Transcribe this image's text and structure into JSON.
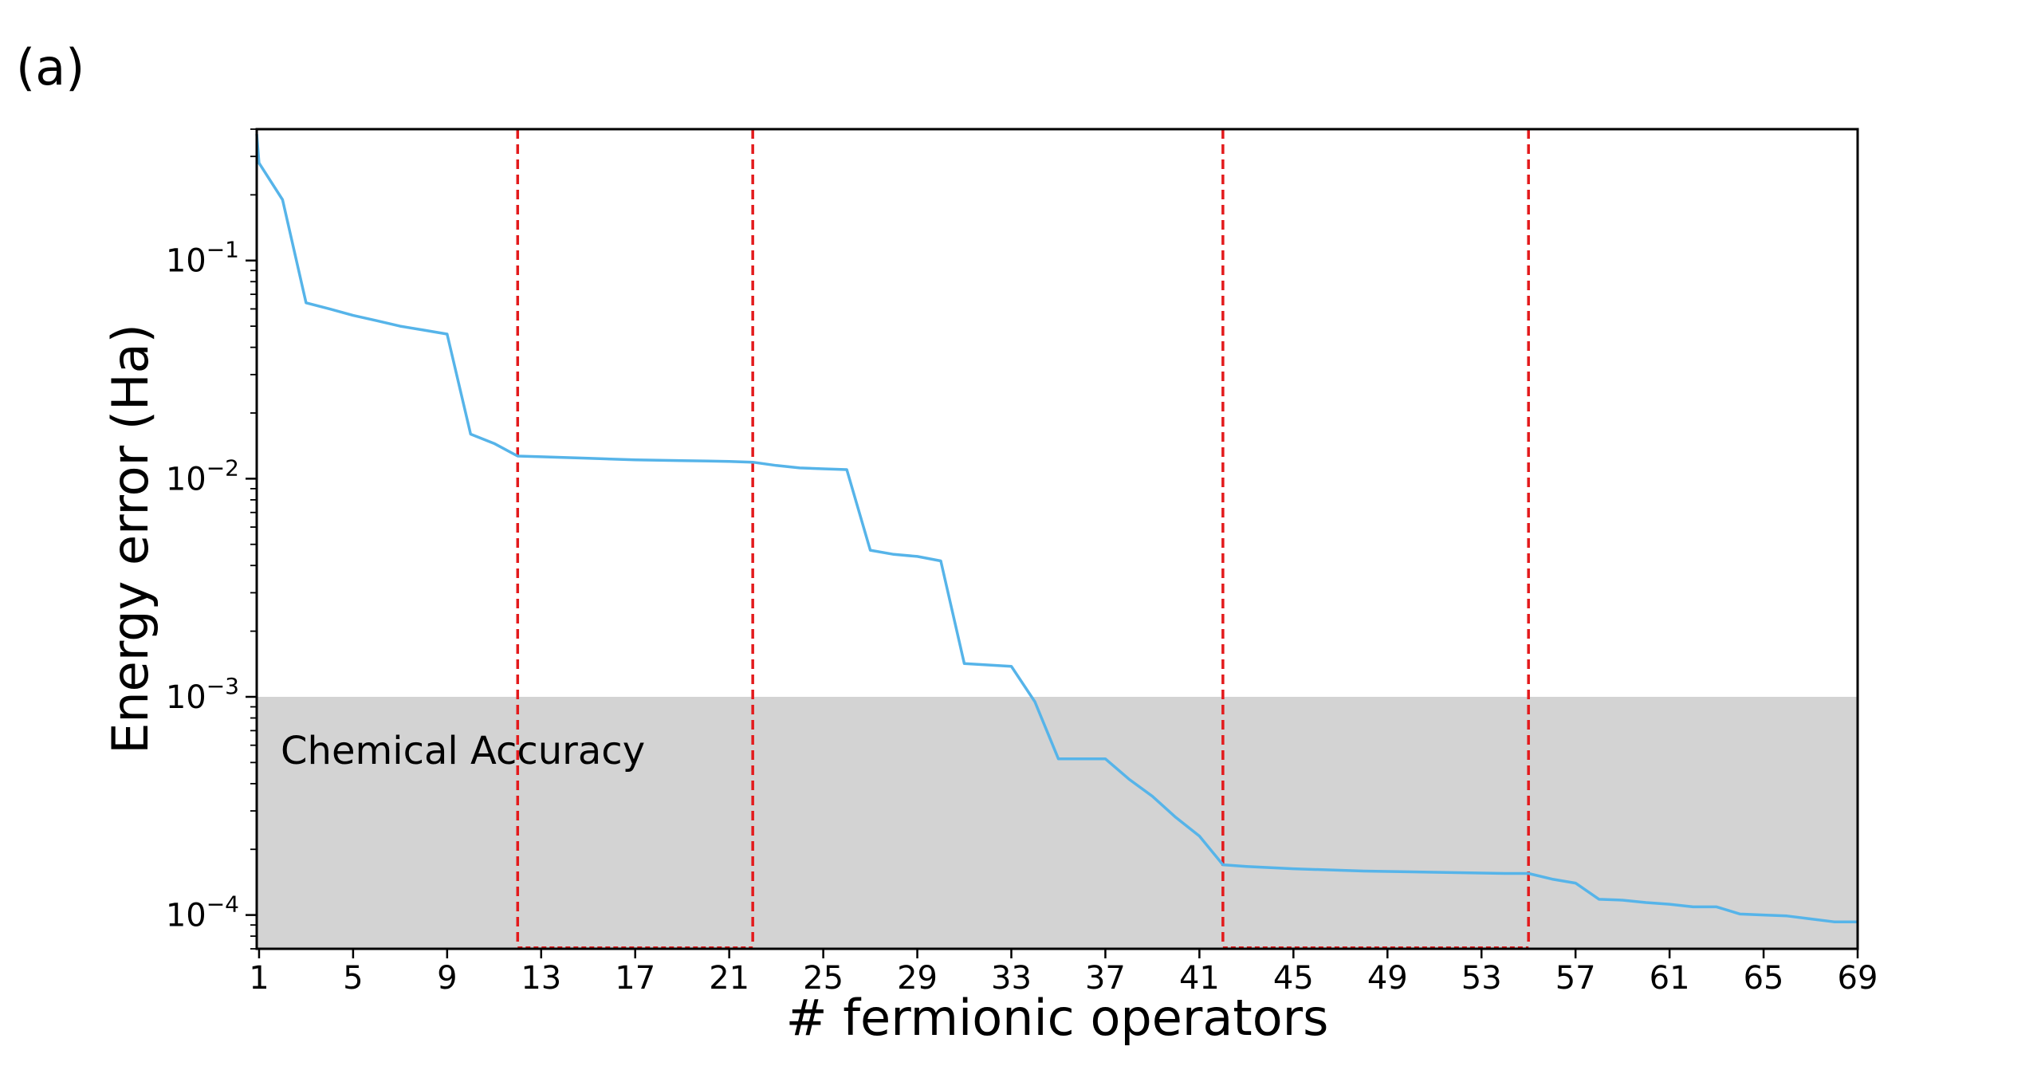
{
  "panel_label": "(a)",
  "chart_data": {
    "type": "line",
    "xlabel": "# fermionic operators",
    "ylabel": "Energy error (Ha)",
    "x_scale": "linear",
    "y_scale": "log",
    "xlim": [
      0.9,
      69
    ],
    "ylim": [
      7e-05,
      0.4
    ],
    "x_ticks": [
      1,
      5,
      9,
      13,
      17,
      21,
      25,
      29,
      33,
      37,
      41,
      45,
      49,
      53,
      57,
      61,
      65,
      69
    ],
    "y_ticks": [
      {
        "value": 0.0001,
        "base": "10",
        "exp": "−4"
      },
      {
        "value": 0.001,
        "base": "10",
        "exp": "−3"
      },
      {
        "value": 0.01,
        "base": "10",
        "exp": "−2"
      },
      {
        "value": 0.1,
        "base": "10",
        "exp": "−1"
      }
    ],
    "series": [
      {
        "color": "#56B4E9",
        "x": [
          0.9,
          1,
          2,
          3,
          4,
          5,
          6,
          7,
          8,
          9,
          10,
          11,
          12,
          13,
          15,
          17,
          19,
          21,
          22,
          23,
          24,
          25,
          26,
          27,
          28,
          29,
          30,
          31,
          32,
          33,
          34,
          35,
          36,
          37,
          38,
          39,
          40,
          41,
          42,
          43,
          45,
          48,
          51,
          54,
          55,
          56,
          57,
          58,
          59,
          60,
          61,
          62,
          63,
          64,
          65,
          66,
          67,
          68,
          69
        ],
        "y": [
          0.38,
          0.28,
          0.19,
          0.064,
          0.06,
          0.056,
          0.053,
          0.05,
          0.048,
          0.046,
          0.016,
          0.0145,
          0.0127,
          0.0126,
          0.0124,
          0.0122,
          0.0121,
          0.012,
          0.0119,
          0.0115,
          0.0112,
          0.0111,
          0.011,
          0.0047,
          0.0045,
          0.0044,
          0.0042,
          0.00142,
          0.0014,
          0.00138,
          0.00095,
          0.00052,
          0.00052,
          0.00052,
          0.00042,
          0.00035,
          0.00028,
          0.00023,
          0.00017,
          0.000167,
          0.000163,
          0.000159,
          0.000157,
          0.000155,
          0.000155,
          0.000146,
          0.00014,
          0.000118,
          0.000117,
          0.000114,
          0.000112,
          0.000109,
          0.000109,
          0.000101,
          0.0001,
          9.9e-05,
          9.6e-05,
          9.3e-05,
          9.3e-05
        ]
      }
    ],
    "shaded_region": {
      "label": "Chemical Accuracy",
      "y_range": [
        7e-05,
        0.001
      ],
      "color": "#d3d3d3"
    },
    "vertical_lines": {
      "x": [
        12,
        22,
        42,
        55
      ],
      "color": "#e31a1c",
      "style": "dashed"
    },
    "bottom_brackets": [
      [
        12,
        22
      ],
      [
        42,
        55
      ]
    ]
  }
}
